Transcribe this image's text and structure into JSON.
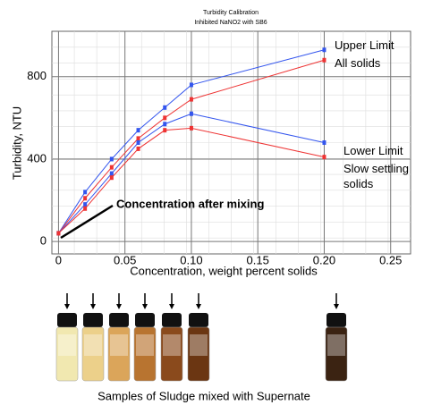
{
  "chart_data": {
    "type": "line",
    "title": "Turbidity Calibration",
    "subtitle": "Inhibited NaNO2 with SB6",
    "x_label": "Concentration, weight percent solids",
    "y_label": "Turbidity, NTU",
    "x": [
      0,
      0.02,
      0.04,
      0.06,
      0.08,
      0.1,
      0.2
    ],
    "series": [
      {
        "name": "Upper Limit",
        "color": "#3355ee",
        "values": [
          40,
          240,
          400,
          540,
          650,
          760,
          930
        ]
      },
      {
        "name": "All solids",
        "color": "#ee3333",
        "values": [
          40,
          210,
          360,
          500,
          600,
          690,
          880
        ]
      },
      {
        "name": "Lower Limit",
        "color": "#3355ee",
        "values": [
          40,
          180,
          330,
          480,
          570,
          620,
          480
        ]
      },
      {
        "name": "Slow settling solids",
        "color": "#ee3333",
        "values": [
          40,
          160,
          310,
          450,
          540,
          550,
          410
        ]
      }
    ],
    "xlim": [
      -0.005,
      0.265
    ],
    "ylim": [
      -60,
      1020
    ],
    "xticks": [
      0,
      0.05,
      {
        "value": 0.1,
        "label": "0.10"
      },
      0.15,
      {
        "value": 0.2,
        "label": "0.20"
      },
      0.25
    ],
    "yticks": [
      0,
      400,
      800
    ],
    "grid": true,
    "annotation": "Concentration after mixing",
    "caption": "Samples of Sludge mixed with Supernate"
  }
}
